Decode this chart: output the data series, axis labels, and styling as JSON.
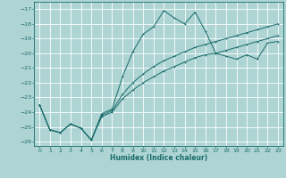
{
  "title": "",
  "xlabel": "Humidex (Indice chaleur)",
  "ylabel": "",
  "bg_color": "#aed4d4",
  "grid_color": "#ffffff",
  "line_color": "#1a6b6b",
  "xlim": [
    -0.5,
    23.5
  ],
  "ylim": [
    -26.3,
    -16.5
  ],
  "xticks": [
    0,
    1,
    2,
    3,
    4,
    5,
    6,
    7,
    8,
    9,
    10,
    11,
    12,
    13,
    14,
    15,
    16,
    17,
    18,
    19,
    20,
    21,
    22,
    23
  ],
  "yticks": [
    -17,
    -18,
    -19,
    -20,
    -21,
    -22,
    -23,
    -24,
    -25,
    -26
  ],
  "series1_x": [
    0,
    1,
    2,
    3,
    4,
    5,
    6,
    7,
    8,
    9,
    10,
    11,
    12,
    13,
    14,
    15,
    16,
    17,
    18,
    19,
    20,
    21,
    22,
    23
  ],
  "series1_y": [
    -23.5,
    -25.2,
    -25.4,
    -24.8,
    -25.1,
    -25.9,
    -24.1,
    -23.8,
    -21.6,
    -19.9,
    -18.7,
    -18.2,
    -17.1,
    -17.6,
    -18.0,
    -17.2,
    -18.5,
    -20.0,
    -20.2,
    -20.4,
    -20.1,
    -20.4,
    -19.3,
    -19.2
  ],
  "series2_x": [
    0,
    1,
    2,
    3,
    4,
    5,
    6,
    7,
    8,
    9,
    10,
    11,
    12,
    13,
    14,
    15,
    16,
    17,
    18,
    19,
    20,
    21,
    22,
    23
  ],
  "series2_y": [
    -23.5,
    -25.2,
    -25.4,
    -24.8,
    -25.1,
    -25.9,
    -24.3,
    -24.0,
    -23.1,
    -22.5,
    -22.0,
    -21.6,
    -21.2,
    -20.9,
    -20.6,
    -20.3,
    -20.1,
    -20.0,
    -19.8,
    -19.6,
    -19.4,
    -19.2,
    -19.0,
    -18.8
  ],
  "series3_x": [
    0,
    1,
    2,
    3,
    4,
    5,
    6,
    7,
    8,
    9,
    10,
    11,
    12,
    13,
    14,
    15,
    16,
    17,
    18,
    19,
    20,
    21,
    22,
    23
  ],
  "series3_y": [
    -23.5,
    -25.2,
    -25.4,
    -24.8,
    -25.1,
    -25.9,
    -24.2,
    -23.9,
    -22.8,
    -22.0,
    -21.4,
    -20.9,
    -20.5,
    -20.2,
    -19.9,
    -19.6,
    -19.4,
    -19.2,
    -19.0,
    -18.8,
    -18.6,
    -18.4,
    -18.2,
    -18.0
  ]
}
